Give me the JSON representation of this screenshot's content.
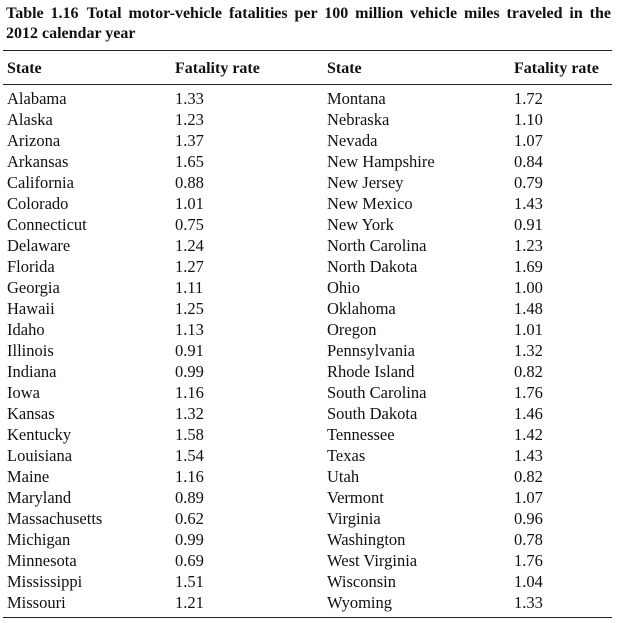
{
  "table": {
    "label": "Table 1.16",
    "title": "Total motor-vehicle fatalities per 100 million vehicle miles traveled in the 2012 calendar year",
    "columns": [
      "State",
      "Fatality rate",
      "State",
      "Fatality rate"
    ],
    "left": [
      {
        "state": "Alabama",
        "rate": "1.33"
      },
      {
        "state": "Alaska",
        "rate": "1.23"
      },
      {
        "state": "Arizona",
        "rate": "1.37"
      },
      {
        "state": "Arkansas",
        "rate": "1.65"
      },
      {
        "state": "California",
        "rate": "0.88"
      },
      {
        "state": "Colorado",
        "rate": "1.01"
      },
      {
        "state": "Connecticut",
        "rate": "0.75"
      },
      {
        "state": "Delaware",
        "rate": "1.24"
      },
      {
        "state": "Florida",
        "rate": "1.27"
      },
      {
        "state": "Georgia",
        "rate": "1.11"
      },
      {
        "state": "Hawaii",
        "rate": "1.25"
      },
      {
        "state": "Idaho",
        "rate": "1.13"
      },
      {
        "state": "Illinois",
        "rate": "0.91"
      },
      {
        "state": "Indiana",
        "rate": "0.99"
      },
      {
        "state": "Iowa",
        "rate": "1.16"
      },
      {
        "state": "Kansas",
        "rate": "1.32"
      },
      {
        "state": "Kentucky",
        "rate": "1.58"
      },
      {
        "state": "Louisiana",
        "rate": "1.54"
      },
      {
        "state": "Maine",
        "rate": "1.16"
      },
      {
        "state": "Maryland",
        "rate": "0.89"
      },
      {
        "state": "Massachusetts",
        "rate": "0.62"
      },
      {
        "state": "Michigan",
        "rate": "0.99"
      },
      {
        "state": "Minnesota",
        "rate": "0.69"
      },
      {
        "state": "Mississippi",
        "rate": "1.51"
      },
      {
        "state": "Missouri",
        "rate": "1.21"
      }
    ],
    "right": [
      {
        "state": "Montana",
        "rate": "1.72"
      },
      {
        "state": "Nebraska",
        "rate": "1.10"
      },
      {
        "state": "Nevada",
        "rate": "1.07"
      },
      {
        "state": "New Hampshire",
        "rate": "0.84"
      },
      {
        "state": "New Jersey",
        "rate": "0.79"
      },
      {
        "state": "New Mexico",
        "rate": "1.43"
      },
      {
        "state": "New York",
        "rate": "0.91"
      },
      {
        "state": "North Carolina",
        "rate": "1.23"
      },
      {
        "state": "North Dakota",
        "rate": "1.69"
      },
      {
        "state": "Ohio",
        "rate": "1.00"
      },
      {
        "state": "Oklahoma",
        "rate": "1.48"
      },
      {
        "state": "Oregon",
        "rate": "1.01"
      },
      {
        "state": "Pennsylvania",
        "rate": "1.32"
      },
      {
        "state": "Rhode Island",
        "rate": "0.82"
      },
      {
        "state": "South Carolina",
        "rate": "1.76"
      },
      {
        "state": "South Dakota",
        "rate": "1.46"
      },
      {
        "state": "Tennessee",
        "rate": "1.42"
      },
      {
        "state": "Texas",
        "rate": "1.43"
      },
      {
        "state": "Utah",
        "rate": "0.82"
      },
      {
        "state": "Vermont",
        "rate": "1.07"
      },
      {
        "state": "Virginia",
        "rate": "0.96"
      },
      {
        "state": "Washington",
        "rate": "0.78"
      },
      {
        "state": "West Virginia",
        "rate": "1.76"
      },
      {
        "state": "Wisconsin",
        "rate": "1.04"
      },
      {
        "state": "Wyoming",
        "rate": "1.33"
      }
    ]
  }
}
